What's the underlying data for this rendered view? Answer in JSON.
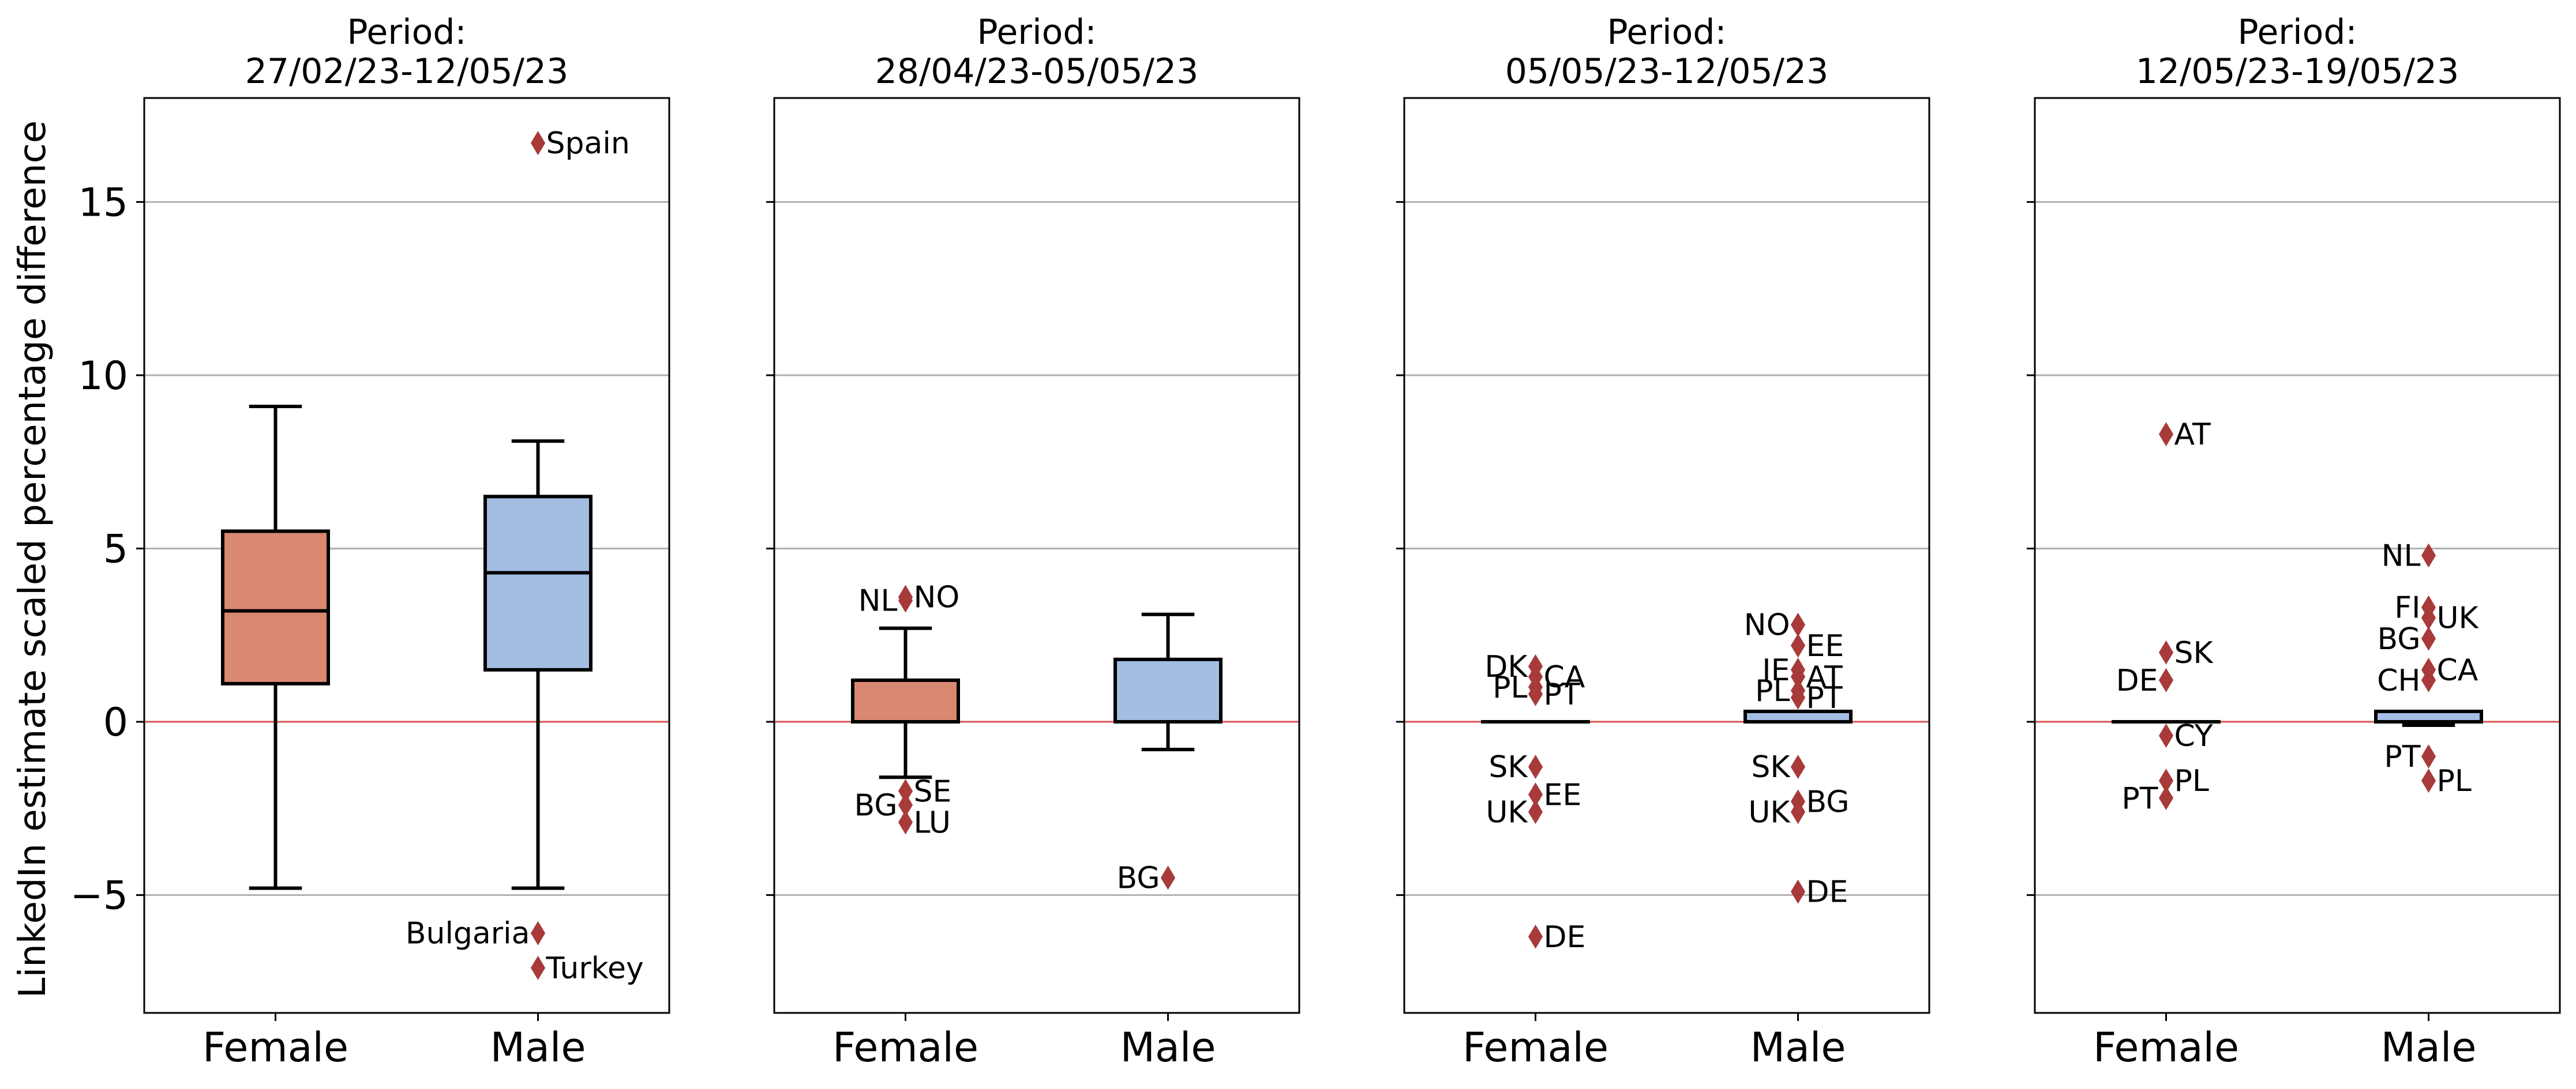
{
  "figure": {
    "ylabel": "LinkedIn estimate scaled percentage difference",
    "yticks": [
      -5,
      0,
      5,
      10,
      15
    ],
    "ylim": [
      -8.4,
      18.0
    ],
    "colors": {
      "female_box": "#d98872",
      "male_box": "#a3bde3",
      "flier": "#a83a3a",
      "zero_line": "#d9534f",
      "grid": "#b0b0b0"
    }
  },
  "chart_data": [
    {
      "type": "box",
      "title_line1": "Period:",
      "title_line2": "27/02/23-12/05/23",
      "categories": [
        "Female",
        "Male"
      ],
      "grid": true,
      "boxes": [
        {
          "category": "Female",
          "whisker_low": -4.8,
          "q1": 1.1,
          "median": 3.2,
          "q3": 5.5,
          "whisker_high": 9.1,
          "fliers": []
        },
        {
          "category": "Male",
          "whisker_low": -4.8,
          "q1": 1.5,
          "median": 4.3,
          "q3": 6.5,
          "whisker_high": 8.1,
          "fliers": [
            {
              "label": "Spain",
              "value": 16.7,
              "side": "right"
            },
            {
              "label": "Bulgaria",
              "value": -6.1,
              "side": "left"
            },
            {
              "label": "Turkey",
              "value": -7.1,
              "side": "right"
            }
          ]
        }
      ]
    },
    {
      "type": "box",
      "title_line1": "Period:",
      "title_line2": "28/04/23-05/05/23",
      "categories": [
        "Female",
        "Male"
      ],
      "grid": true,
      "boxes": [
        {
          "category": "Female",
          "whisker_low": -1.6,
          "q1": 0.0,
          "median": 0.0,
          "q3": 1.2,
          "whisker_high": 2.7,
          "fliers": [
            {
              "label": "NL",
              "value": 3.5,
              "side": "left"
            },
            {
              "label": "NO",
              "value": 3.6,
              "side": "right"
            },
            {
              "label": "SE",
              "value": -2.0,
              "side": "right"
            },
            {
              "label": "BG",
              "value": -2.4,
              "side": "left"
            },
            {
              "label": "LU",
              "value": -2.9,
              "side": "right"
            }
          ]
        },
        {
          "category": "Male",
          "whisker_low": -0.8,
          "q1": 0.0,
          "median": 0.0,
          "q3": 1.8,
          "whisker_high": 3.1,
          "fliers": [
            {
              "label": "BG",
              "value": -4.5,
              "side": "left"
            }
          ]
        }
      ]
    },
    {
      "type": "box",
      "title_line1": "Period:",
      "title_line2": "05/05/23-12/05/23",
      "categories": [
        "Female",
        "Male"
      ],
      "grid": true,
      "boxes": [
        {
          "category": "Female",
          "whisker_low": 0.0,
          "q1": 0.0,
          "median": 0.0,
          "q3": 0.0,
          "whisker_high": 0.0,
          "fliers": [
            {
              "label": "DK",
              "value": 1.6,
              "side": "left"
            },
            {
              "label": "CA",
              "value": 1.3,
              "side": "right"
            },
            {
              "label": "PL",
              "value": 1.0,
              "side": "left"
            },
            {
              "label": "PT",
              "value": 0.8,
              "side": "right"
            },
            {
              "label": "SK",
              "value": -1.3,
              "side": "left"
            },
            {
              "label": "EE",
              "value": -2.1,
              "side": "right"
            },
            {
              "label": "UK",
              "value": -2.6,
              "side": "left"
            },
            {
              "label": "DE",
              "value": -6.2,
              "side": "right"
            }
          ]
        },
        {
          "category": "Male",
          "whisker_low": 0.0,
          "q1": 0.0,
          "median": 0.0,
          "q3": 0.3,
          "whisker_high": 0.3,
          "fliers": [
            {
              "label": "NO",
              "value": 2.8,
              "side": "left"
            },
            {
              "label": "EE",
              "value": 2.2,
              "side": "right"
            },
            {
              "label": "IE",
              "value": 1.5,
              "side": "left"
            },
            {
              "label": "AT",
              "value": 1.3,
              "side": "right"
            },
            {
              "label": "PL",
              "value": 0.9,
              "side": "left"
            },
            {
              "label": "PT",
              "value": 0.7,
              "side": "right"
            },
            {
              "label": "SK",
              "value": -1.3,
              "side": "left"
            },
            {
              "label": "BG",
              "value": -2.3,
              "side": "right"
            },
            {
              "label": "UK",
              "value": -2.6,
              "side": "left"
            },
            {
              "label": "DE",
              "value": -4.9,
              "side": "right"
            }
          ]
        }
      ]
    },
    {
      "type": "box",
      "title_line1": "Period:",
      "title_line2": "12/05/23-19/05/23",
      "categories": [
        "Female",
        "Male"
      ],
      "grid": true,
      "boxes": [
        {
          "category": "Female",
          "whisker_low": 0.0,
          "q1": 0.0,
          "median": 0.0,
          "q3": 0.0,
          "whisker_high": 0.0,
          "fliers": [
            {
              "label": "AT",
              "value": 8.3,
              "side": "right"
            },
            {
              "label": "SK",
              "value": 2.0,
              "side": "right"
            },
            {
              "label": "DE",
              "value": 1.2,
              "side": "left"
            },
            {
              "label": "CY",
              "value": -0.4,
              "side": "right"
            },
            {
              "label": "PL",
              "value": -1.7,
              "side": "right"
            },
            {
              "label": "PT",
              "value": -2.2,
              "side": "left"
            }
          ]
        },
        {
          "category": "Male",
          "whisker_low": -0.1,
          "q1": 0.0,
          "median": 0.0,
          "q3": 0.3,
          "whisker_high": 0.3,
          "fliers": [
            {
              "label": "NL",
              "value": 4.8,
              "side": "left"
            },
            {
              "label": "FI",
              "value": 3.3,
              "side": "left"
            },
            {
              "label": "UK",
              "value": 3.0,
              "side": "right"
            },
            {
              "label": "BG",
              "value": 2.4,
              "side": "left"
            },
            {
              "label": "CA",
              "value": 1.5,
              "side": "right"
            },
            {
              "label": "CH",
              "value": 1.2,
              "side": "left"
            },
            {
              "label": "PT",
              "value": -1.0,
              "side": "left"
            },
            {
              "label": "PL",
              "value": -1.7,
              "side": "right"
            }
          ]
        }
      ]
    }
  ]
}
